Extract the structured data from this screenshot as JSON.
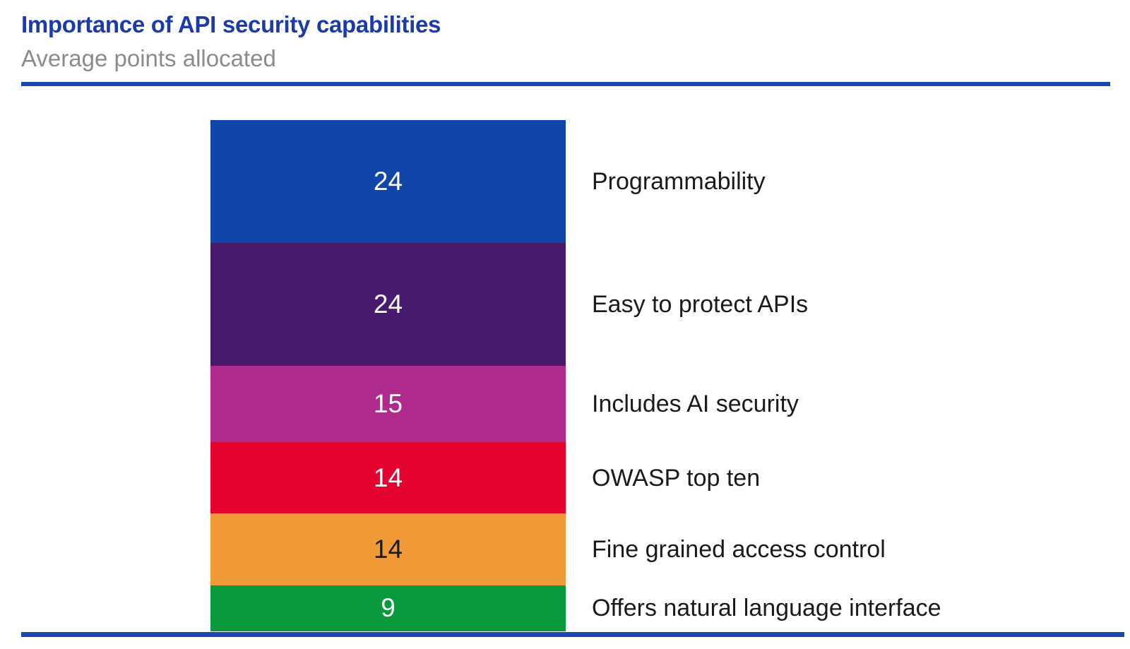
{
  "header": {
    "title": "Importance of API security capabilities",
    "subtitle": "Average points allocated",
    "title_color": "#1c3bab",
    "rule_color": "#1d48ab"
  },
  "chart_data": {
    "type": "bar",
    "stacked": true,
    "orientation": "vertical",
    "title": "Importance of API security capabilities",
    "subtitle": "Average points allocated",
    "categories": [
      "Programmability",
      "Easy to protect APIs",
      "Includes AI security",
      "OWASP top ten",
      "Fine grained access control",
      "Offers natural language interface"
    ],
    "values": [
      24,
      24,
      15,
      14,
      14,
      9
    ],
    "total_points": 100,
    "legend_position": "right-of-segments",
    "grid": false,
    "segments": [
      {
        "label": "Programmability",
        "value": 24,
        "color": "#1245a8",
        "value_text_color": "#ffffff"
      },
      {
        "label": "Easy to protect APIs",
        "value": 24,
        "color": "#471a6e",
        "value_text_color": "#ffffff"
      },
      {
        "label": "Includes AI security",
        "value": 15,
        "color": "#ae2a8c",
        "value_text_color": "#ffffff"
      },
      {
        "label": "OWASP top ten",
        "value": 14,
        "color": "#e4032e",
        "value_text_color": "#ffffff"
      },
      {
        "label": "Fine grained access control",
        "value": 14,
        "color": "#f09a38",
        "value_text_color": "#1a1a1a"
      },
      {
        "label": "Offers natural language interface",
        "value": 9,
        "color": "#089a3c",
        "value_text_color": "#ffffff"
      }
    ]
  }
}
